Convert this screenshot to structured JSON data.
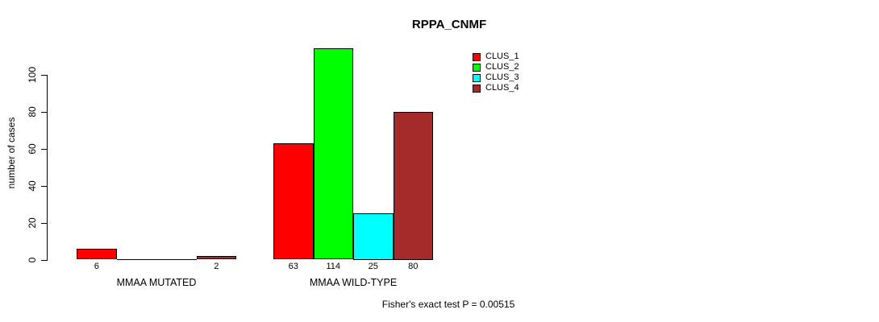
{
  "chart_data": {
    "type": "bar",
    "title": "RPPA_CNMF",
    "ylabel": "number of cases",
    "xlabel": "",
    "footer": "Fisher's exact test P = 0.00515",
    "ylim": [
      0,
      115
    ],
    "yticks": [
      0,
      20,
      40,
      60,
      80,
      100
    ],
    "grid": false,
    "legend_position": "top-right",
    "categories": [
      "MMAA MUTATED",
      "MMAA WILD-TYPE"
    ],
    "series": [
      {
        "name": "CLUS_1",
        "color": "#ff0000",
        "values": [
          6,
          63
        ]
      },
      {
        "name": "CLUS_2",
        "color": "#00ff00",
        "values": [
          0,
          114
        ]
      },
      {
        "name": "CLUS_3",
        "color": "#00ffff",
        "values": [
          0,
          25
        ]
      },
      {
        "name": "CLUS_4",
        "color": "#a52a2a",
        "values": [
          2,
          80
        ]
      }
    ],
    "bar_value_labels": [
      "6",
      "2",
      "63",
      "114",
      "25",
      "80"
    ],
    "show_zero_value_labels": false
  }
}
